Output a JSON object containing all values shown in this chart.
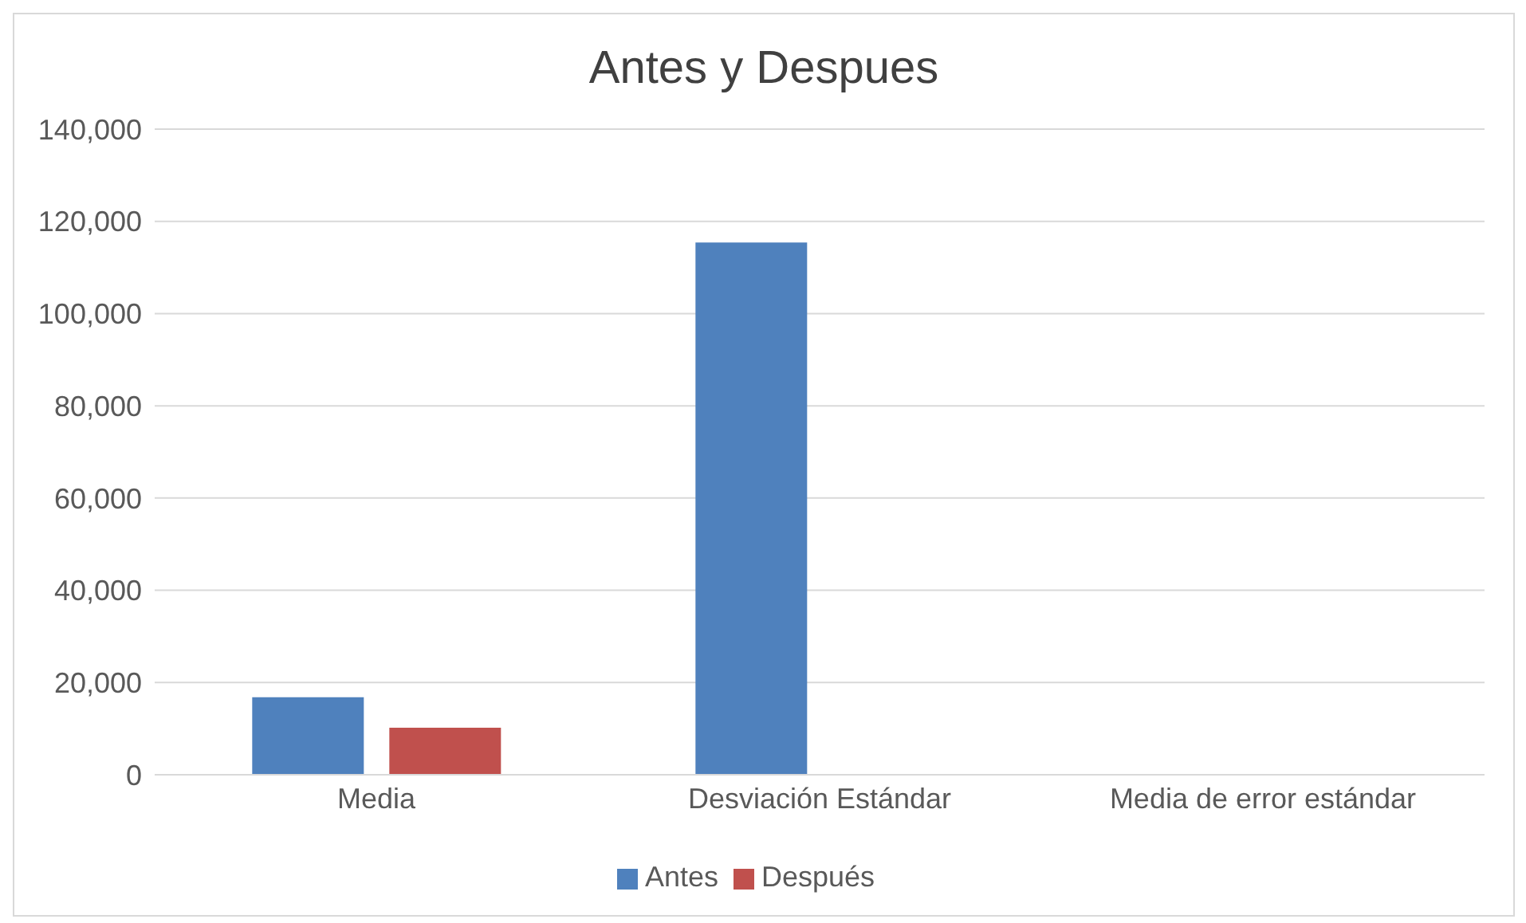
{
  "chart_data": {
    "type": "bar",
    "title": "Antes y Despues",
    "categories": [
      "Media",
      "Desviación Estándar",
      "Media de error estándar"
    ],
    "series": [
      {
        "name": "Antes",
        "color": "#4f81bd",
        "values": [
          16800,
          115400,
          0
        ]
      },
      {
        "name": "Después",
        "color": "#c0504d",
        "values": [
          10200,
          0,
          0
        ]
      }
    ],
    "ylim": [
      0,
      140000
    ],
    "yticks": [
      {
        "value": 0,
        "label": "0"
      },
      {
        "value": 20000,
        "label": "20,000"
      },
      {
        "value": 40000,
        "label": "40,000"
      },
      {
        "value": 60000,
        "label": "60,000"
      },
      {
        "value": 80000,
        "label": "80,000"
      },
      {
        "value": 100000,
        "label": "100,000"
      },
      {
        "value": 120000,
        "label": "120,000"
      },
      {
        "value": 140000,
        "label": "140,000"
      }
    ],
    "grid": "y",
    "legend": "bottom"
  }
}
